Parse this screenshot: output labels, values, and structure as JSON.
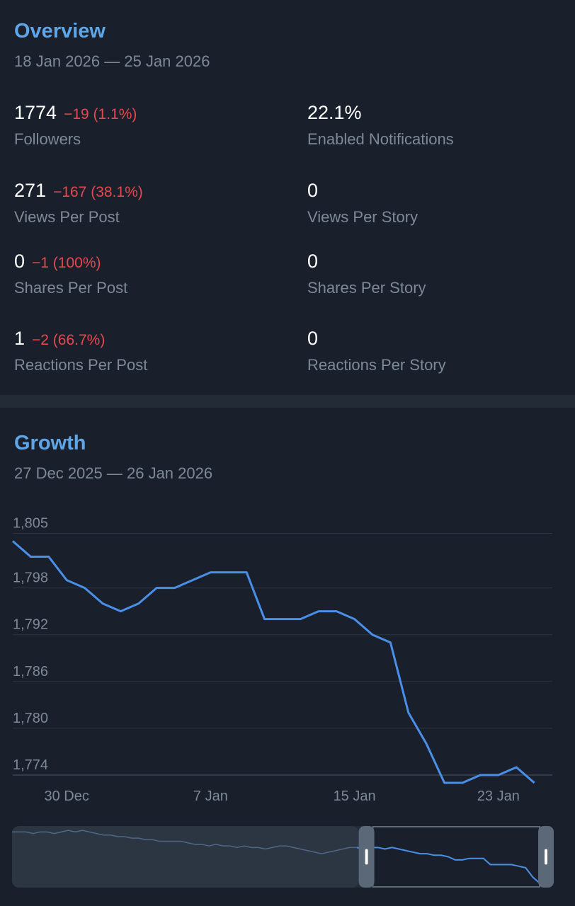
{
  "overview": {
    "title": "Overview",
    "date_range": "18 Jan 2026 — 25 Jan 2026",
    "stats": [
      {
        "value": "1774",
        "delta": "−19 (1.1%)",
        "label": "Followers"
      },
      {
        "value": "22.1%",
        "delta": "",
        "label": "Enabled Notifications"
      },
      {
        "value": "271",
        "delta": "−167 (38.1%)",
        "label": "Views Per Post"
      },
      {
        "value": "0",
        "delta": "",
        "label": "Views Per Story"
      },
      {
        "value": "0",
        "delta": "−1 (100%)",
        "label": "Shares Per Post"
      },
      {
        "value": "0",
        "delta": "",
        "label": "Shares Per Story"
      },
      {
        "value": "1",
        "delta": "−2 (66.7%)",
        "label": "Reactions Per Post"
      },
      {
        "value": "0",
        "delta": "",
        "label": "Reactions Per Story"
      }
    ],
    "colors": {
      "title": "#5fa6e8",
      "negative": "#e5484d",
      "label": "#7d8995"
    }
  },
  "growth": {
    "title": "Growth",
    "date_range": "27 Dec 2025 — 26 Jan 2026",
    "chart_data": {
      "type": "line",
      "y_ticks": [
        "1,805",
        "1,798",
        "1,792",
        "1,786",
        "1,780",
        "1,774"
      ],
      "y_tick_values": [
        1805,
        1798,
        1792,
        1786,
        1780,
        1774
      ],
      "ylim": [
        1774,
        1805.5
      ],
      "x_tick_labels": [
        "30 Dec",
        "7 Jan",
        "15 Jan",
        "23 Jan"
      ],
      "x_tick_days": [
        3,
        11,
        19,
        27
      ],
      "xlim_days": [
        0,
        30
      ],
      "series": [
        {
          "color": "#4a8fe7",
          "values": [
            1804,
            1802,
            1802,
            1799,
            1798,
            1796,
            1795,
            1796,
            1798,
            1798,
            1799,
            1800,
            1800,
            1800,
            1794,
            1794,
            1794,
            1795,
            1795,
            1794,
            1792,
            1791,
            1782,
            1778,
            1773,
            1773,
            1774,
            1774,
            1775,
            1773
          ]
        }
      ],
      "grid": true,
      "navigator": {
        "window_start_fraction": 0.64,
        "window_end_fraction": 1.0,
        "values": [
          1805,
          1805,
          1805,
          1804,
          1805,
          1805,
          1804,
          1805,
          1806,
          1805,
          1806,
          1805,
          1804,
          1803,
          1803,
          1802,
          1802,
          1801,
          1801,
          1800,
          1800,
          1799,
          1799,
          1799,
          1799,
          1798,
          1797,
          1797,
          1796,
          1797,
          1796,
          1796,
          1795,
          1796,
          1795,
          1795,
          1794,
          1795,
          1796,
          1796,
          1795,
          1794,
          1793,
          1792,
          1791,
          1792,
          1793,
          1794,
          1795,
          1795,
          1794,
          1795,
          1795,
          1794,
          1795,
          1794,
          1793,
          1792,
          1791,
          1791,
          1790,
          1790,
          1789,
          1787,
          1787,
          1788,
          1788,
          1788,
          1784,
          1784,
          1784,
          1784,
          1783,
          1782,
          1776,
          1772,
          1772,
          1773
        ]
      }
    }
  }
}
